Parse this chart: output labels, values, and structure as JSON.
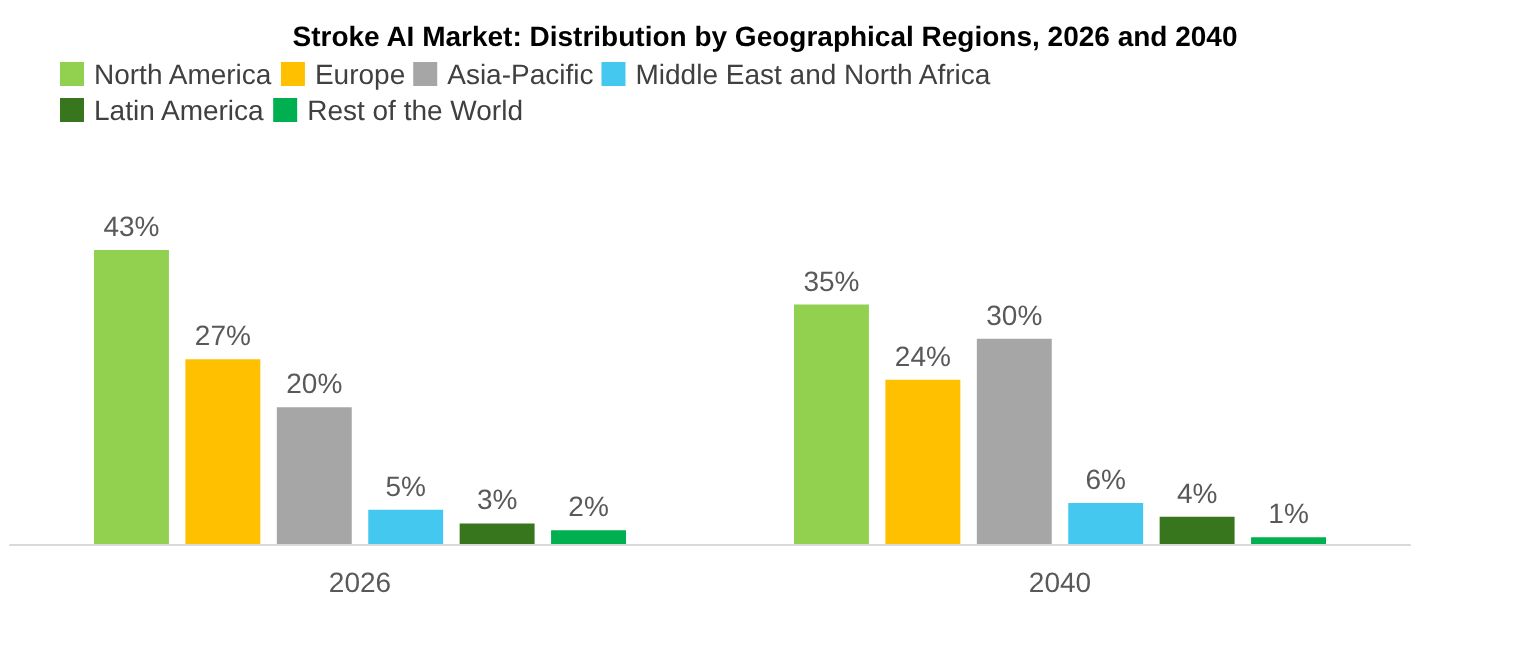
{
  "chart_data": {
    "type": "bar",
    "title": "Stroke AI Market: Distribution by Geographical Regions, 2026 and 2040",
    "categories": [
      "2026",
      "2040"
    ],
    "series": [
      {
        "name": "North America",
        "color": "#92d050",
        "values": [
          43,
          35
        ],
        "value_labels": [
          "43%",
          "35%"
        ]
      },
      {
        "name": "Europe",
        "color": "#ffc000",
        "values": [
          27,
          24
        ],
        "value_labels": [
          "27%",
          "24%"
        ]
      },
      {
        "name": "Asia-Pacific",
        "color": "#a6a6a6",
        "values": [
          20,
          30
        ],
        "value_labels": [
          "20%",
          "30%"
        ]
      },
      {
        "name": "Middle East and North Africa",
        "color": "#45c8f0",
        "values": [
          5,
          6
        ],
        "value_labels": [
          "5%",
          "6%"
        ]
      },
      {
        "name": "Latin America",
        "color": "#38761d",
        "values": [
          3,
          4
        ],
        "value_labels": [
          "3%",
          "4%"
        ]
      },
      {
        "name": "Rest of the World",
        "color": "#00b050",
        "values": [
          2,
          1
        ],
        "value_labels": [
          "2%",
          "1%"
        ]
      }
    ],
    "legend": "top left",
    "tick_labels": "x"
  }
}
